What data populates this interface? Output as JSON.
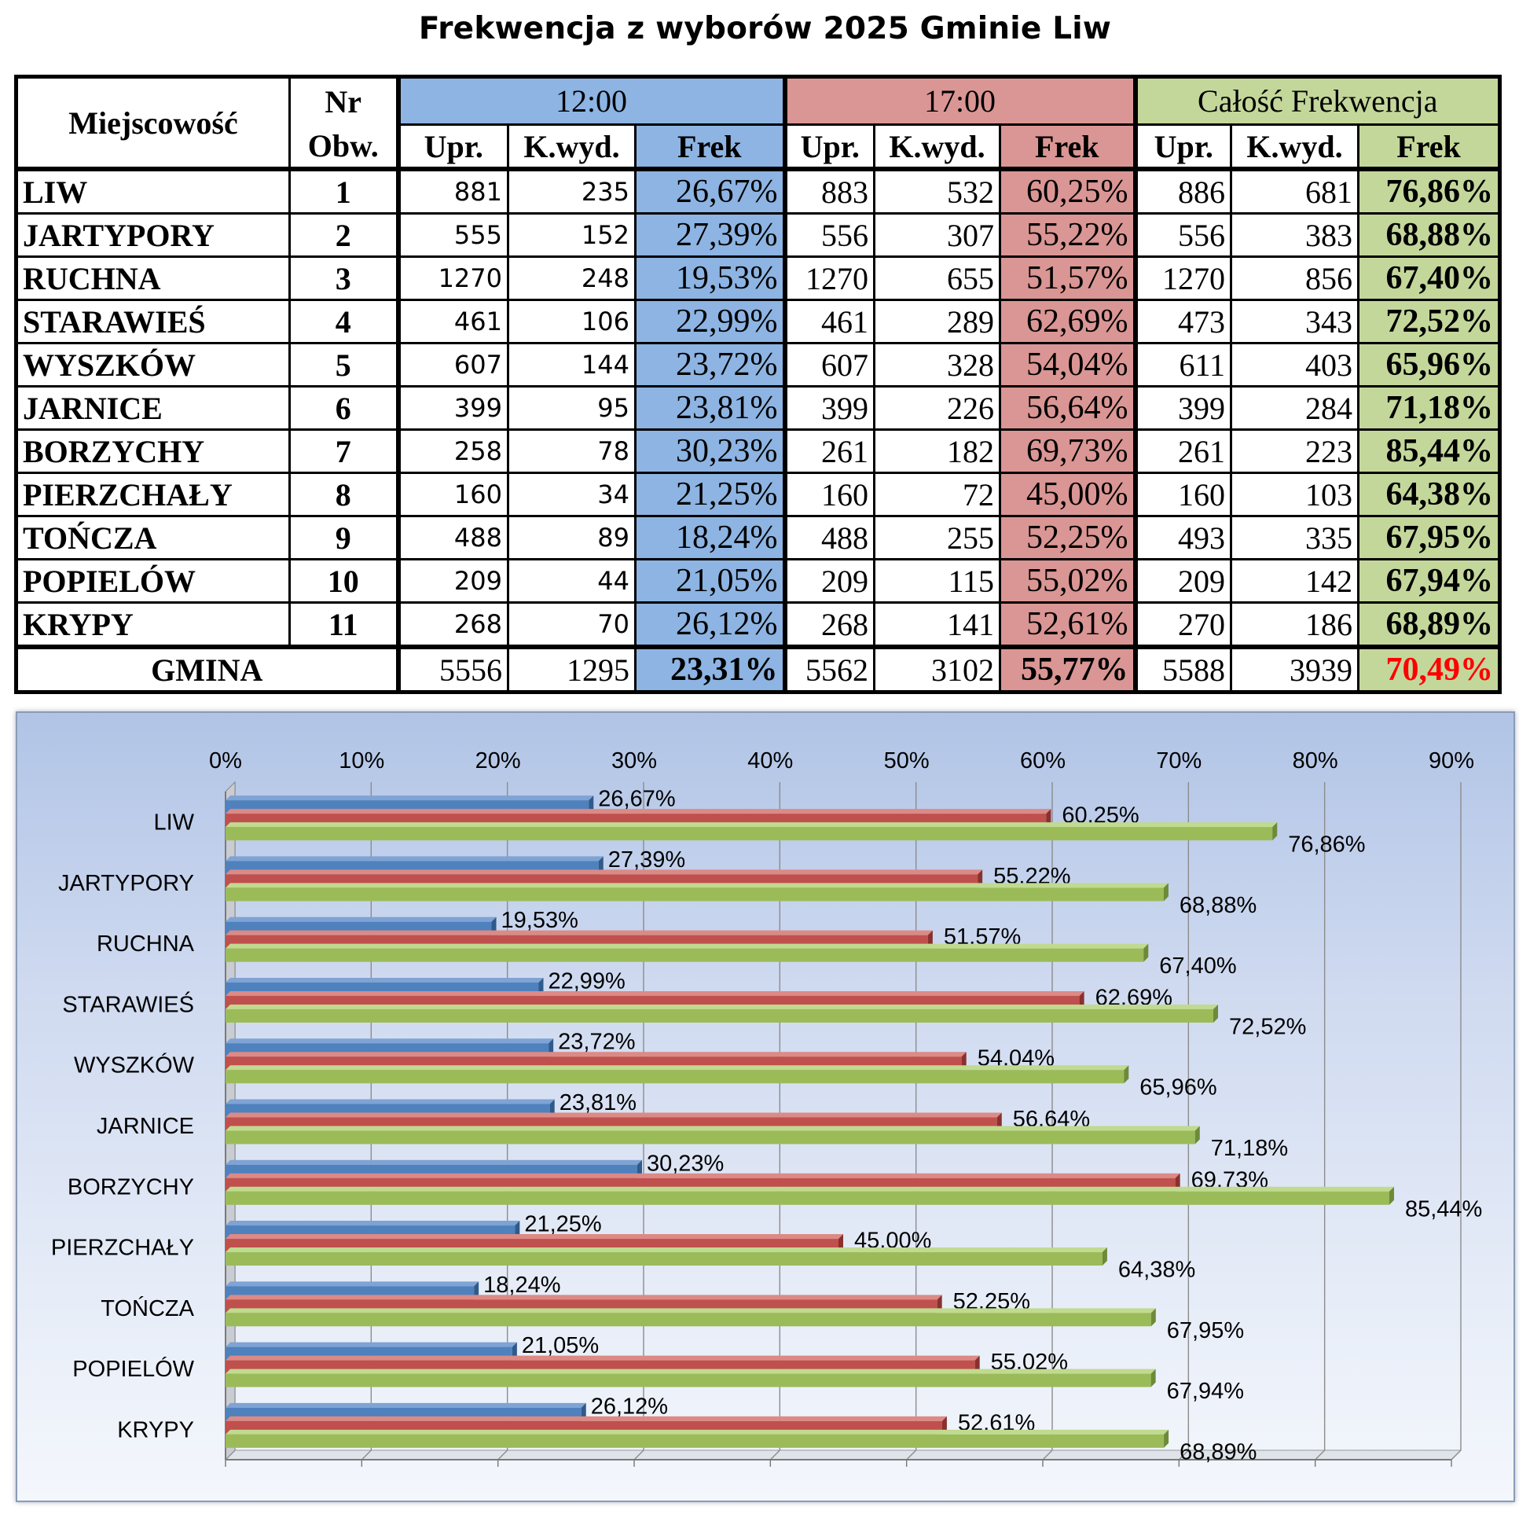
{
  "title": "Frekwencja z wyborów 2025 Gminie Liw",
  "table": {
    "h_loc": "Miejscowość",
    "h_nr1": "Nr",
    "h_nr2": "Obw.",
    "h_t1": "12:00",
    "h_t2": "17:00",
    "h_t3": "Całość Frekwencja",
    "h_upr": "Upr.",
    "h_kwyd": "K.wyd.",
    "h_frek": "Frek",
    "rows": [
      {
        "name": "LIW",
        "nr": "1",
        "u12": "881",
        "k12": "235",
        "f12": "26,67%",
        "u17": "883",
        "k17": "532",
        "f17": "60,25%",
        "ut": "886",
        "kt": "681",
        "ft": "76,86%"
      },
      {
        "name": "JARTYPORY",
        "nr": "2",
        "u12": "555",
        "k12": "152",
        "f12": "27,39%",
        "u17": "556",
        "k17": "307",
        "f17": "55,22%",
        "ut": "556",
        "kt": "383",
        "ft": "68,88%"
      },
      {
        "name": "RUCHNA",
        "nr": "3",
        "u12": "1270",
        "k12": "248",
        "f12": "19,53%",
        "u17": "1270",
        "k17": "655",
        "f17": "51,57%",
        "ut": "1270",
        "kt": "856",
        "ft": "67,40%"
      },
      {
        "name": "STARAWIEŚ",
        "nr": "4",
        "u12": "461",
        "k12": "106",
        "f12": "22,99%",
        "u17": "461",
        "k17": "289",
        "f17": "62,69%",
        "ut": "473",
        "kt": "343",
        "ft": "72,52%"
      },
      {
        "name": "WYSZKÓW",
        "nr": "5",
        "u12": "607",
        "k12": "144",
        "f12": "23,72%",
        "u17": "607",
        "k17": "328",
        "f17": "54,04%",
        "ut": "611",
        "kt": "403",
        "ft": "65,96%"
      },
      {
        "name": "JARNICE",
        "nr": "6",
        "u12": "399",
        "k12": "95",
        "f12": "23,81%",
        "u17": "399",
        "k17": "226",
        "f17": "56,64%",
        "ut": "399",
        "kt": "284",
        "ft": "71,18%"
      },
      {
        "name": "BORZYCHY",
        "nr": "7",
        "u12": "258",
        "k12": "78",
        "f12": "30,23%",
        "u17": "261",
        "k17": "182",
        "f17": "69,73%",
        "ut": "261",
        "kt": "223",
        "ft": "85,44%"
      },
      {
        "name": "PIERZCHAŁY",
        "nr": "8",
        "u12": "160",
        "k12": "34",
        "f12": "21,25%",
        "u17": "160",
        "k17": "72",
        "f17": "45,00%",
        "ut": "160",
        "kt": "103",
        "ft": "64,38%"
      },
      {
        "name": "TOŃCZA",
        "nr": "9",
        "u12": "488",
        "k12": "89",
        "f12": "18,24%",
        "u17": "488",
        "k17": "255",
        "f17": "52,25%",
        "ut": "493",
        "kt": "335",
        "ft": "67,95%"
      },
      {
        "name": "POPIELÓW",
        "nr": "10",
        "u12": "209",
        "k12": "44",
        "f12": "21,05%",
        "u17": "209",
        "k17": "115",
        "f17": "55,02%",
        "ut": "209",
        "kt": "142",
        "ft": "67,94%"
      },
      {
        "name": "KRYPY",
        "nr": "11",
        "u12": "268",
        "k12": "70",
        "f12": "26,12%",
        "u17": "268",
        "k17": "141",
        "f17": "52,61%",
        "ut": "270",
        "kt": "186",
        "ft": "68,89%"
      }
    ],
    "total": {
      "name": "GMINA",
      "u12": "5556",
      "k12": "1295",
      "f12": "23,31%",
      "u17": "5562",
      "k17": "3102",
      "f17": "55,77%",
      "ut": "5588",
      "kt": "3939",
      "ft": "70,49%"
    }
  },
  "colors": {
    "blue_fill": "#8db4e2",
    "red_fill": "#da9694",
    "green_fill": "#c4d79b",
    "bar_blue": "#4f81bd",
    "bar_red": "#c0504d",
    "bar_green": "#9bbb59",
    "highlight": "#ff0000"
  },
  "chart_data": {
    "type": "bar",
    "orientation": "horizontal",
    "categories": [
      "LIW",
      "JARTYPORY",
      "RUCHNA",
      "STARAWIEŚ",
      "WYSZKÓW",
      "JARNICE",
      "BORZYCHY",
      "PIERZCHAŁY",
      "TOŃCZA",
      "POPIELÓW",
      "KRYPY"
    ],
    "series": [
      {
        "values": [
          26.67,
          27.39,
          19.53,
          22.99,
          23.72,
          23.81,
          30.23,
          21.25,
          18.24,
          21.05,
          26.12
        ],
        "labels": [
          "26,67%",
          "27,39%",
          "19,53%",
          "22,99%",
          "23,72%",
          "23,81%",
          "30,23%",
          "21,25%",
          "18,24%",
          "21,05%",
          "26,12%"
        ]
      },
      {
        "values": [
          60.25,
          55.22,
          51.57,
          62.69,
          54.04,
          56.64,
          69.73,
          45.0,
          52.25,
          55.02,
          52.61
        ],
        "labels": [
          "60,25%",
          "55,22%",
          "51,57%",
          "62,69%",
          "54,04%",
          "56,64%",
          "69,73%",
          "45,00%",
          "52,25%",
          "55,02%",
          "52,61%"
        ]
      },
      {
        "values": [
          76.86,
          68.88,
          67.4,
          72.52,
          65.96,
          71.18,
          85.44,
          64.38,
          67.95,
          67.94,
          68.89
        ],
        "labels": [
          "76,86%",
          "68,88%",
          "67,40%",
          "72,52%",
          "65,96%",
          "71,18%",
          "85,44%",
          "64,38%",
          "67,95%",
          "67,94%",
          "68,89%"
        ]
      }
    ],
    "xlim": [
      0,
      90
    ],
    "xticks": [
      "0%",
      "10%",
      "20%",
      "30%",
      "40%",
      "50%",
      "60%",
      "70%",
      "80%",
      "90%"
    ],
    "axis_position": "top",
    "grid": true,
    "legend": "none"
  }
}
